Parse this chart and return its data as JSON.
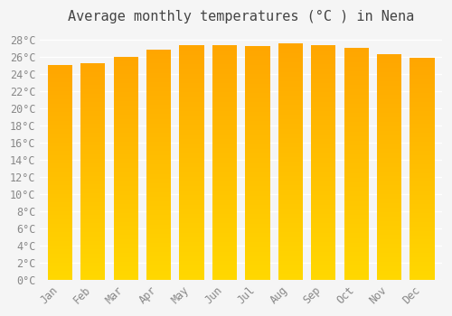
{
  "months": [
    "Jan",
    "Feb",
    "Mar",
    "Apr",
    "May",
    "Jun",
    "Jul",
    "Aug",
    "Sep",
    "Oct",
    "Nov",
    "Dec"
  ],
  "temperatures": [
    25.0,
    25.2,
    26.0,
    26.8,
    27.3,
    27.3,
    27.2,
    27.5,
    27.3,
    27.0,
    26.3,
    25.9
  ],
  "title": "Average monthly temperatures (°C ) in Nena",
  "ylim": [
    0,
    29
  ],
  "yticks": [
    0,
    2,
    4,
    6,
    8,
    10,
    12,
    14,
    16,
    18,
    20,
    22,
    24,
    26,
    28
  ],
  "ytick_labels": [
    "0°C",
    "2°C",
    "4°C",
    "6°C",
    "8°C",
    "10°C",
    "12°C",
    "14°C",
    "16°C",
    "18°C",
    "20°C",
    "22°C",
    "24°C",
    "26°C",
    "28°C"
  ],
  "bar_color_top": "#FFA500",
  "bar_color_bottom": "#FFD700",
  "background_color": "#f5f5f5",
  "grid_color": "#ffffff",
  "title_fontsize": 11,
  "tick_fontsize": 8.5,
  "font_family": "monospace"
}
